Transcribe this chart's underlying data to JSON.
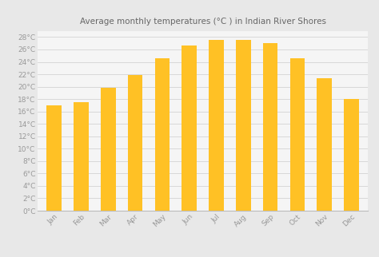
{
  "title": "Average monthly temperatures (°C ) in Indian River Shores",
  "months": [
    "Jan",
    "Feb",
    "Mar",
    "Apr",
    "May",
    "Jun",
    "Jul",
    "Aug",
    "Sep",
    "Oct",
    "Nov",
    "Dec"
  ],
  "values": [
    17.0,
    17.5,
    19.8,
    21.9,
    24.6,
    26.7,
    27.5,
    27.6,
    27.0,
    24.6,
    21.3,
    18.0
  ],
  "bar_color": "#FFC125",
  "background_color": "#e8e8e8",
  "plot_bg_color": "#f5f5f5",
  "ylim": [
    0,
    29
  ],
  "yticks": [
    0,
    2,
    4,
    6,
    8,
    10,
    12,
    14,
    16,
    18,
    20,
    22,
    24,
    26,
    28
  ],
  "title_fontsize": 7.5,
  "tick_fontsize": 6.5,
  "grid_color": "#cccccc",
  "title_color": "#666666",
  "tick_color": "#999999",
  "bar_width": 0.55,
  "spine_color": "#bbbbbb"
}
